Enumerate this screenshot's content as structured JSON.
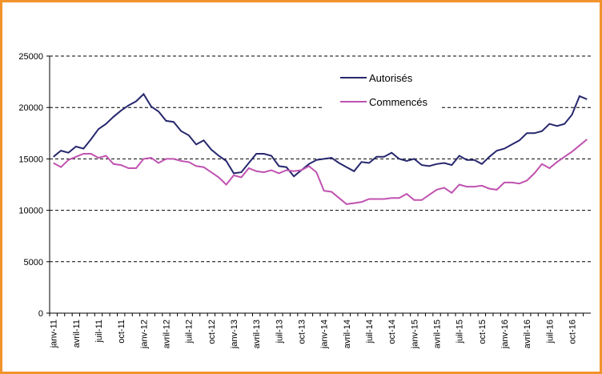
{
  "chart_data": {
    "type": "line",
    "categories": [
      "janv-11",
      null,
      null,
      "avril-11",
      null,
      null,
      "juil-11",
      null,
      null,
      "oct-11",
      null,
      null,
      "janv-12",
      null,
      null,
      "avril-12",
      null,
      null,
      "juil-12",
      null,
      null,
      "oct-12",
      null,
      null,
      "janv-13",
      null,
      null,
      "avril-13",
      null,
      null,
      "juil-13",
      null,
      null,
      "oct-13",
      null,
      null,
      "janv-14",
      null,
      null,
      "avril-14",
      null,
      null,
      "juil-14",
      null,
      null,
      "oct-14",
      null,
      null,
      "janv-15",
      null,
      null,
      "avril-15",
      null,
      null,
      "juil-15",
      null,
      null,
      "oct-15",
      null,
      null,
      "janv-16",
      null,
      null,
      "avril-16",
      null,
      null,
      "juil-16",
      null,
      null,
      "oct-16",
      null,
      null
    ],
    "series": [
      {
        "name": "Autorisés",
        "color": "#27276e",
        "values": [
          15200,
          15800,
          15600,
          16200,
          16000,
          16900,
          17900,
          18400,
          19100,
          19700,
          20200,
          20600,
          21300,
          20100,
          19600,
          18700,
          18600,
          17700,
          17300,
          16400,
          16800,
          15900,
          15300,
          14800,
          13600,
          13700,
          14600,
          15500,
          15500,
          15300,
          14300,
          14200,
          13300,
          13900,
          14500,
          14900,
          15000,
          15100,
          14600,
          14200,
          13800,
          14700,
          14600,
          15200,
          15200,
          15600,
          15000,
          14800,
          15000,
          14400,
          14300,
          14500,
          14600,
          14400,
          15300,
          14900,
          14900,
          14500,
          15200,
          15800,
          16000,
          16400,
          16800,
          17500,
          17500,
          17700,
          18400,
          18200,
          18400,
          19300,
          21100,
          20800
        ]
      },
      {
        "name": "Commencés",
        "color": "#c052b0",
        "values": [
          14600,
          14200,
          14900,
          15200,
          15500,
          15500,
          15100,
          15300,
          14500,
          14400,
          14100,
          14100,
          15000,
          15100,
          14600,
          15000,
          15000,
          14800,
          14700,
          14300,
          14200,
          13700,
          13200,
          12500,
          13400,
          13200,
          14100,
          13800,
          13700,
          13900,
          13600,
          13900,
          13800,
          13900,
          14300,
          13700,
          11900,
          11800,
          11200,
          10600,
          10700,
          10800,
          11100,
          11100,
          11100,
          11200,
          11200,
          11600,
          11000,
          11000,
          11500,
          12000,
          12200,
          11700,
          12500,
          12300,
          12300,
          12400,
          12100,
          12000,
          12700,
          12700,
          12600,
          12900,
          13600,
          14500,
          14100,
          14700,
          15200,
          15700,
          16300,
          16900
        ]
      }
    ],
    "ylim": [
      0,
      25000
    ],
    "yticks": [
      0,
      5000,
      10000,
      15000,
      20000,
      25000
    ],
    "grid": true
  }
}
